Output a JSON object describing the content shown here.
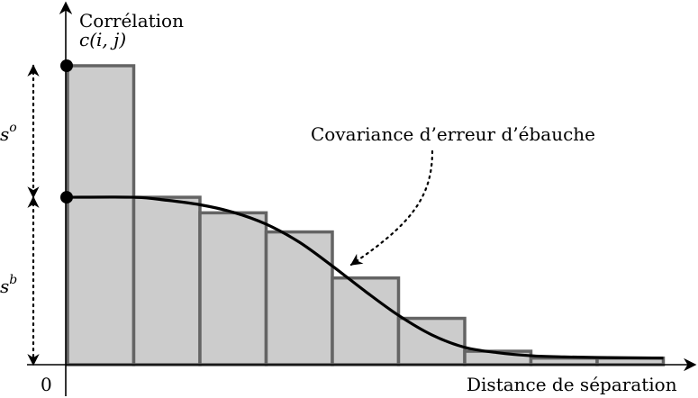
{
  "chart_data": {
    "type": "bar",
    "title": "",
    "ylabel_line1": "Corrélation",
    "ylabel_line2": "c(i, j)",
    "xlabel": "Distance de séparation",
    "origin_label": "0",
    "bars": [
      {
        "x_start": 0,
        "x_end": 1,
        "value": 1.0
      },
      {
        "x_start": 1,
        "x_end": 2,
        "value": 0.56
      },
      {
        "x_start": 2,
        "x_end": 3,
        "value": 0.508
      },
      {
        "x_start": 3,
        "x_end": 4,
        "value": 0.444
      },
      {
        "x_start": 4,
        "x_end": 5,
        "value": 0.29
      },
      {
        "x_start": 5,
        "x_end": 6,
        "value": 0.155
      },
      {
        "x_start": 6,
        "x_end": 7,
        "value": 0.045
      },
      {
        "x_start": 7,
        "x_end": 8,
        "value": 0.022
      },
      {
        "x_start": 8,
        "x_end": 9,
        "value": 0.022
      }
    ],
    "curve": {
      "name": "Covariance d’erreur d’ébauche",
      "x": [
        0,
        1,
        1.5,
        2,
        2.5,
        3,
        3.5,
        4,
        4.5,
        5,
        5.5,
        6,
        6.5,
        7,
        7.5,
        8,
        8.5,
        9
      ],
      "y": [
        0.56,
        0.56,
        0.55,
        0.535,
        0.51,
        0.47,
        0.41,
        0.33,
        0.245,
        0.165,
        0.1,
        0.058,
        0.04,
        0.03,
        0.026,
        0.024,
        0.023,
        0.022
      ]
    },
    "points": [
      {
        "x": 0,
        "y": 1.0
      },
      {
        "x": 0,
        "y": 0.56
      }
    ],
    "markers": {
      "s_o": {
        "symbol": "s",
        "sup": "o",
        "from": 0.56,
        "to": 1.0
      },
      "s_b": {
        "symbol": "s",
        "sup": "b",
        "from": 0.0,
        "to": 0.56
      }
    },
    "annotation": {
      "text": "Covariance d’erreur d’ébauche",
      "points_to_x": 4.2
    },
    "colors": {
      "bar_fill": "#cccccc",
      "bar_stroke": "#646464",
      "curve": "#000000"
    }
  }
}
